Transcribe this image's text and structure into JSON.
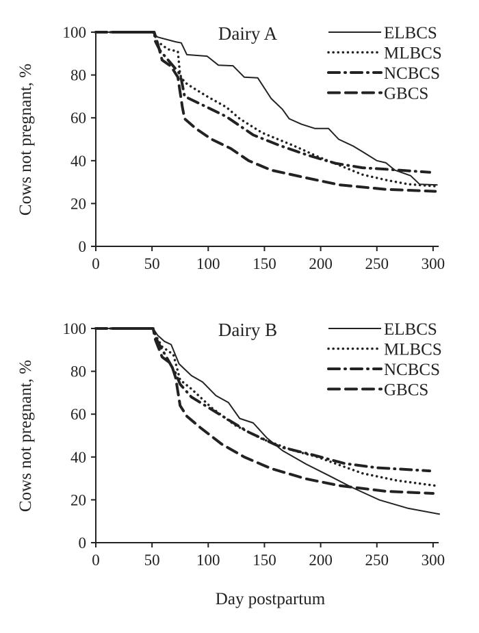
{
  "chart_data": [
    {
      "type": "line",
      "title": "Dairy A",
      "xlabel": "",
      "ylabel": "Cows not pregnant, %",
      "xlim": [
        0,
        305
      ],
      "ylim": [
        0,
        100
      ],
      "xticks": [
        0,
        50,
        100,
        150,
        200,
        250,
        300
      ],
      "yticks": [
        0,
        20,
        40,
        60,
        80,
        100
      ],
      "grid": false,
      "legend": "top-right",
      "series": [
        {
          "name": "ELBCS",
          "style": "solid",
          "points": [
            [
              0,
              100
            ],
            [
              50,
              100
            ],
            [
              55,
              97.7
            ],
            [
              71,
              95.5
            ],
            [
              76,
              95
            ],
            [
              81,
              89.5
            ],
            [
              99,
              88.8
            ],
            [
              109,
              84.6
            ],
            [
              122,
              84.3
            ],
            [
              132,
              79
            ],
            [
              144,
              78.7
            ],
            [
              156,
              69
            ],
            [
              166,
              64
            ],
            [
              172,
              59.6
            ],
            [
              183,
              57
            ],
            [
              195,
              55
            ],
            [
              207,
              55
            ],
            [
              216,
              50
            ],
            [
              229,
              46.8
            ],
            [
              239,
              43.6
            ],
            [
              250,
              40
            ],
            [
              258,
              39
            ],
            [
              266,
              35.6
            ],
            [
              280,
              33
            ],
            [
              288,
              29
            ],
            [
              304,
              28.7
            ]
          ]
        },
        {
          "name": "MLBCS",
          "style": "dotted",
          "points": [
            [
              0,
              100
            ],
            [
              52,
              100
            ],
            [
              54,
              96
            ],
            [
              64,
              92
            ],
            [
              73,
              91
            ],
            [
              75,
              80
            ],
            [
              79,
              76.6
            ],
            [
              85,
              74.5
            ],
            [
              99,
              70
            ],
            [
              116,
              65
            ],
            [
              128,
              59.6
            ],
            [
              148,
              53
            ],
            [
              176,
              47
            ],
            [
              197,
              42
            ],
            [
              217,
              37.8
            ],
            [
              237,
              33.5
            ],
            [
              258,
              31
            ],
            [
              278,
              29
            ],
            [
              304,
              28
            ]
          ]
        },
        {
          "name": "NCBCS",
          "style": "dashdot",
          "points": [
            [
              0,
              100
            ],
            [
              52,
              100
            ],
            [
              53,
              95.7
            ],
            [
              57,
              91.5
            ],
            [
              74,
              81
            ],
            [
              76,
              78
            ],
            [
              79,
              70
            ],
            [
              91,
              67
            ],
            [
              116,
              60.6
            ],
            [
              140,
              52
            ],
            [
              164,
              47
            ],
            [
              189,
              42.5
            ],
            [
              213,
              38.8
            ],
            [
              237,
              36.7
            ],
            [
              258,
              36
            ],
            [
              297,
              34.6
            ]
          ]
        },
        {
          "name": "GBCS",
          "style": "dashed",
          "points": [
            [
              0,
              100
            ],
            [
              52,
              100
            ],
            [
              55,
              94.7
            ],
            [
              59,
              87
            ],
            [
              67,
              84
            ],
            [
              73,
              79
            ],
            [
              77,
              65
            ],
            [
              79,
              59.6
            ],
            [
              89,
              55
            ],
            [
              103,
              50
            ],
            [
              120,
              45.7
            ],
            [
              136,
              40
            ],
            [
              156,
              35.6
            ],
            [
              187,
              32
            ],
            [
              217,
              28.7
            ],
            [
              258,
              26.6
            ],
            [
              302,
              25.7
            ]
          ]
        }
      ]
    },
    {
      "type": "line",
      "title": "Dairy B",
      "xlabel": "Day postpartum",
      "ylabel": "Cows not pregnant, %",
      "xlim": [
        0,
        305
      ],
      "ylim": [
        0,
        100
      ],
      "xticks": [
        0,
        50,
        100,
        150,
        200,
        250,
        300
      ],
      "yticks": [
        0,
        20,
        40,
        60,
        80,
        100
      ],
      "grid": false,
      "legend": "top-right",
      "series": [
        {
          "name": "ELBCS",
          "style": "solid",
          "points": [
            [
              0,
              100
            ],
            [
              51,
              100
            ],
            [
              55,
              96.8
            ],
            [
              61,
              94
            ],
            [
              67,
              92.5
            ],
            [
              74,
              83.5
            ],
            [
              85,
              78
            ],
            [
              95,
              75
            ],
            [
              107,
              68.6
            ],
            [
              118,
              65.4
            ],
            [
              128,
              58
            ],
            [
              140,
              55.9
            ],
            [
              152,
              49
            ],
            [
              166,
              43
            ],
            [
              187,
              36.7
            ],
            [
              207,
              31.4
            ],
            [
              227,
              26
            ],
            [
              252,
              20
            ],
            [
              278,
              16
            ],
            [
              306,
              13.3
            ]
          ]
        },
        {
          "name": "MLBCS",
          "style": "dotted",
          "points": [
            [
              0,
              100
            ],
            [
              51,
              100
            ],
            [
              53,
              97
            ],
            [
              59,
              91.5
            ],
            [
              69,
              87.8
            ],
            [
              75,
              76
            ],
            [
              85,
              71.8
            ],
            [
              103,
              63
            ],
            [
              124,
              54.8
            ],
            [
              148,
              48.4
            ],
            [
              176,
              43
            ],
            [
              197,
              40
            ],
            [
              237,
              32.4
            ],
            [
              268,
              29
            ],
            [
              302,
              26.6
            ]
          ]
        },
        {
          "name": "NCBCS",
          "style": "dashdot",
          "points": [
            [
              0,
              100
            ],
            [
              51,
              100
            ],
            [
              53,
              96
            ],
            [
              57,
              92
            ],
            [
              71,
              79
            ],
            [
              75,
              74
            ],
            [
              85,
              68
            ],
            [
              116,
              58
            ],
            [
              136,
              51.6
            ],
            [
              164,
              44.7
            ],
            [
              193,
              41
            ],
            [
              221,
              37
            ],
            [
              250,
              35
            ],
            [
              297,
              33.5
            ]
          ]
        },
        {
          "name": "GBCS",
          "style": "dashed",
          "points": [
            [
              0,
              100
            ],
            [
              51,
              100
            ],
            [
              53,
              94.7
            ],
            [
              59,
              86.7
            ],
            [
              67,
              83.5
            ],
            [
              71,
              77
            ],
            [
              75,
              64
            ],
            [
              81,
              59
            ],
            [
              93,
              53.7
            ],
            [
              112,
              46
            ],
            [
              132,
              40
            ],
            [
              156,
              34.6
            ],
            [
              187,
              29.8
            ],
            [
              217,
              26.6
            ],
            [
              258,
              24
            ],
            [
              300,
              23
            ]
          ]
        }
      ]
    }
  ]
}
